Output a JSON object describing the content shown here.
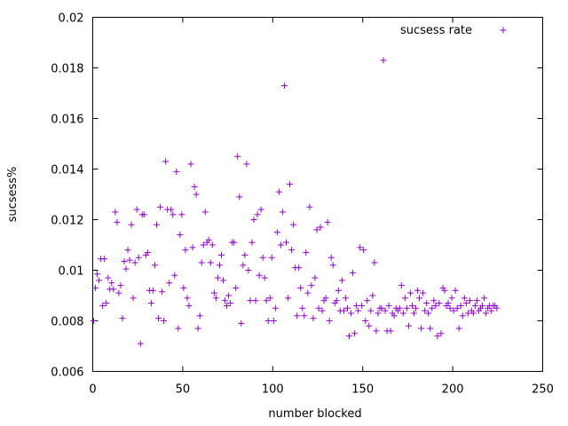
{
  "chart_data": {
    "type": "scatter",
    "title": "",
    "xlabel": "number blocked",
    "ylabel": "sucsess%",
    "xlim": [
      0,
      250
    ],
    "ylim": [
      0.006,
      0.02
    ],
    "x_ticks": [
      0,
      50,
      100,
      150,
      200,
      250
    ],
    "y_ticks": [
      0.006,
      0.008,
      0.01,
      0.012,
      0.014,
      0.016,
      0.018,
      0.02
    ],
    "x_tick_labels": [
      "0",
      "50",
      "100",
      "150",
      "200",
      "250"
    ],
    "y_tick_labels": [
      "0.006",
      "0.008",
      "0.01",
      "0.012",
      "0.014",
      "0.016",
      "0.018",
      "0.02"
    ],
    "grid": false,
    "legend_position": "top-right",
    "marker": "plus",
    "color": "#9400d3",
    "series": [
      {
        "name": "sucsess rate",
        "points": [
          [
            0.5,
            0.008
          ],
          [
            1.5,
            0.0093
          ],
          [
            2.5,
            0.00985
          ],
          [
            3.5,
            0.0096
          ],
          [
            4.5,
            0.01045
          ],
          [
            5.5,
            0.0086
          ],
          [
            6.5,
            0.01045
          ],
          [
            7.5,
            0.0087
          ],
          [
            8.5,
            0.0097
          ],
          [
            9.5,
            0.00925
          ],
          [
            10.5,
            0.0095
          ],
          [
            11.5,
            0.00925
          ],
          [
            12.5,
            0.0123
          ],
          [
            13.5,
            0.0119
          ],
          [
            14.5,
            0.0091
          ],
          [
            15.5,
            0.0094
          ],
          [
            16.5,
            0.0081
          ],
          [
            17.5,
            0.01035
          ],
          [
            18.5,
            0.01005
          ],
          [
            19.5,
            0.0108
          ],
          [
            20.5,
            0.0104
          ],
          [
            21.5,
            0.0118
          ],
          [
            22.5,
            0.0089
          ],
          [
            23.5,
            0.0103
          ],
          [
            24.5,
            0.0124
          ],
          [
            25.5,
            0.0105
          ],
          [
            26.5,
            0.0071
          ],
          [
            27.5,
            0.0122
          ],
          [
            28.5,
            0.0122
          ],
          [
            29.5,
            0.0106
          ],
          [
            30.5,
            0.0107
          ],
          [
            31.5,
            0.0092
          ],
          [
            32.5,
            0.0087
          ],
          [
            33.5,
            0.0092
          ],
          [
            34.5,
            0.0102
          ],
          [
            35.5,
            0.0118
          ],
          [
            36.5,
            0.0081
          ],
          [
            37.5,
            0.0125
          ],
          [
            38.5,
            0.00915
          ],
          [
            39.5,
            0.008
          ],
          [
            40.5,
            0.0143
          ],
          [
            41.5,
            0.0124
          ],
          [
            42.5,
            0.0095
          ],
          [
            43.5,
            0.0124
          ],
          [
            44.5,
            0.0122
          ],
          [
            45.5,
            0.0098
          ],
          [
            46.5,
            0.0139
          ],
          [
            47.5,
            0.0077
          ],
          [
            48.5,
            0.0114
          ],
          [
            49.5,
            0.0122
          ],
          [
            50.5,
            0.0093
          ],
          [
            51.5,
            0.0108
          ],
          [
            52.5,
            0.0089
          ],
          [
            53.5,
            0.0086
          ],
          [
            54.5,
            0.0142
          ],
          [
            55.5,
            0.0109
          ],
          [
            56.5,
            0.0133
          ],
          [
            57.5,
            0.013
          ],
          [
            58.5,
            0.0077
          ],
          [
            59.5,
            0.0082
          ],
          [
            60.5,
            0.0103
          ],
          [
            61.5,
            0.011
          ],
          [
            62.5,
            0.0123
          ],
          [
            63.5,
            0.0111
          ],
          [
            64.5,
            0.0112
          ],
          [
            65.5,
            0.0103
          ],
          [
            66.5,
            0.011
          ],
          [
            67.5,
            0.0091
          ],
          [
            68.5,
            0.0089
          ],
          [
            69.5,
            0.0097
          ],
          [
            70.5,
            0.0102
          ],
          [
            71.5,
            0.0106
          ],
          [
            72.5,
            0.0096
          ],
          [
            73.5,
            0.0088
          ],
          [
            74.5,
            0.0086
          ],
          [
            75.5,
            0.009
          ],
          [
            76.5,
            0.0087
          ],
          [
            77.5,
            0.0111
          ],
          [
            78.5,
            0.0111
          ],
          [
            79.5,
            0.0093
          ],
          [
            80.5,
            0.0145
          ],
          [
            81.5,
            0.0129
          ],
          [
            82.5,
            0.0079
          ],
          [
            83.5,
            0.0102
          ],
          [
            84.5,
            0.0106
          ],
          [
            85.5,
            0.0142
          ],
          [
            86.5,
            0.01
          ],
          [
            87.5,
            0.0088
          ],
          [
            88.5,
            0.0111
          ],
          [
            89.5,
            0.012
          ],
          [
            90.5,
            0.0088
          ],
          [
            91.5,
            0.0122
          ],
          [
            92.5,
            0.0098
          ],
          [
            93.5,
            0.0124
          ],
          [
            94.5,
            0.0105
          ],
          [
            95.5,
            0.0097
          ],
          [
            96.5,
            0.0088
          ],
          [
            97.5,
            0.008
          ],
          [
            98.5,
            0.0089
          ],
          [
            99.5,
            0.0105
          ],
          [
            100.5,
            0.008
          ],
          [
            101.5,
            0.0085
          ],
          [
            102.5,
            0.0115
          ],
          [
            103.5,
            0.0131
          ],
          [
            104.5,
            0.011
          ],
          [
            105.5,
            0.0123
          ],
          [
            106.5,
            0.0173
          ],
          [
            107.5,
            0.0111
          ],
          [
            108.5,
            0.0089
          ],
          [
            109.5,
            0.0134
          ],
          [
            110.5,
            0.0108
          ],
          [
            111.5,
            0.0118
          ],
          [
            112.5,
            0.0101
          ],
          [
            113.5,
            0.0082
          ],
          [
            114.5,
            0.0101
          ],
          [
            115.5,
            0.0093
          ],
          [
            116.5,
            0.0085
          ],
          [
            117.5,
            0.0082
          ],
          [
            118.5,
            0.0107
          ],
          [
            119.5,
            0.0091
          ],
          [
            120.5,
            0.0125
          ],
          [
            121.5,
            0.0094
          ],
          [
            122.5,
            0.0081
          ],
          [
            123.5,
            0.0097
          ],
          [
            124.5,
            0.0116
          ],
          [
            125.5,
            0.0085
          ],
          [
            126.5,
            0.0117
          ],
          [
            127.5,
            0.0084
          ],
          [
            128.5,
            0.0088
          ],
          [
            129.5,
            0.0089
          ],
          [
            130.5,
            0.0119
          ],
          [
            131.5,
            0.008
          ],
          [
            132.5,
            0.0105
          ],
          [
            133.5,
            0.0102
          ],
          [
            134.5,
            0.0087
          ],
          [
            135.5,
            0.0088
          ],
          [
            136.5,
            0.0092
          ],
          [
            137.5,
            0.0084
          ],
          [
            138.5,
            0.0096
          ],
          [
            139.5,
            0.0084
          ],
          [
            140.5,
            0.0089
          ],
          [
            141.5,
            0.0085
          ],
          [
            142.5,
            0.0074
          ],
          [
            143.5,
            0.0083
          ],
          [
            144.5,
            0.0099
          ],
          [
            145.5,
            0.0075
          ],
          [
            146.5,
            0.0086
          ],
          [
            147.5,
            0.0084
          ],
          [
            148.5,
            0.0109
          ],
          [
            149.5,
            0.0086
          ],
          [
            150.5,
            0.0108
          ],
          [
            151.5,
            0.008
          ],
          [
            152.5,
            0.0088
          ],
          [
            153.5,
            0.0078
          ],
          [
            154.5,
            0.0084
          ],
          [
            155.5,
            0.009
          ],
          [
            156.5,
            0.0103
          ],
          [
            157.5,
            0.0076
          ],
          [
            158.5,
            0.0083
          ],
          [
            159.5,
            0.0085
          ],
          [
            160.5,
            0.0085
          ],
          [
            161.5,
            0.0183
          ],
          [
            162.5,
            0.0084
          ],
          [
            163.5,
            0.0076
          ],
          [
            164.5,
            0.0086
          ],
          [
            165.5,
            0.0076
          ],
          [
            166.5,
            0.0083
          ],
          [
            167.5,
            0.0082
          ],
          [
            168.5,
            0.0085
          ],
          [
            169.5,
            0.0084
          ],
          [
            170.5,
            0.0085
          ],
          [
            171.5,
            0.0094
          ],
          [
            172.5,
            0.0083
          ],
          [
            173.5,
            0.0089
          ],
          [
            174.5,
            0.0085
          ],
          [
            175.5,
            0.0078
          ],
          [
            176.5,
            0.0091
          ],
          [
            177.5,
            0.0086
          ],
          [
            178.5,
            0.0083
          ],
          [
            179.5,
            0.0085
          ],
          [
            180.5,
            0.0092
          ],
          [
            181.5,
            0.0089
          ],
          [
            182.5,
            0.0077
          ],
          [
            183.5,
            0.0091
          ],
          [
            184.5,
            0.0084
          ],
          [
            185.5,
            0.0087
          ],
          [
            186.5,
            0.0083
          ],
          [
            187.5,
            0.0077
          ],
          [
            188.5,
            0.0085
          ],
          [
            189.5,
            0.0088
          ],
          [
            190.5,
            0.0086
          ],
          [
            191.5,
            0.0074
          ],
          [
            192.5,
            0.0087
          ],
          [
            193.5,
            0.0075
          ],
          [
            194.5,
            0.0093
          ],
          [
            195.5,
            0.0092
          ],
          [
            196.5,
            0.0086
          ],
          [
            197.5,
            0.0087
          ],
          [
            198.5,
            0.0085
          ],
          [
            199.5,
            0.0089
          ],
          [
            200.5,
            0.0084
          ],
          [
            201.5,
            0.0092
          ],
          [
            202.5,
            0.0085
          ],
          [
            203.5,
            0.0077
          ],
          [
            204.5,
            0.0086
          ],
          [
            205.5,
            0.0082
          ],
          [
            206.5,
            0.0089
          ],
          [
            207.5,
            0.0087
          ],
          [
            208.5,
            0.0083
          ],
          [
            209.5,
            0.0088
          ],
          [
            210.5,
            0.0084
          ],
          [
            211.5,
            0.0083
          ],
          [
            212.5,
            0.0086
          ],
          [
            213.5,
            0.0088
          ],
          [
            214.5,
            0.0084
          ],
          [
            215.5,
            0.0085
          ],
          [
            216.5,
            0.0086
          ],
          [
            217.5,
            0.0089
          ],
          [
            218.5,
            0.0083
          ],
          [
            219.5,
            0.0085
          ],
          [
            220.5,
            0.0086
          ],
          [
            221.5,
            0.0084
          ],
          [
            222.5,
            0.0086
          ],
          [
            223.5,
            0.0086
          ],
          [
            224.5,
            0.0085
          ]
        ]
      }
    ]
  }
}
